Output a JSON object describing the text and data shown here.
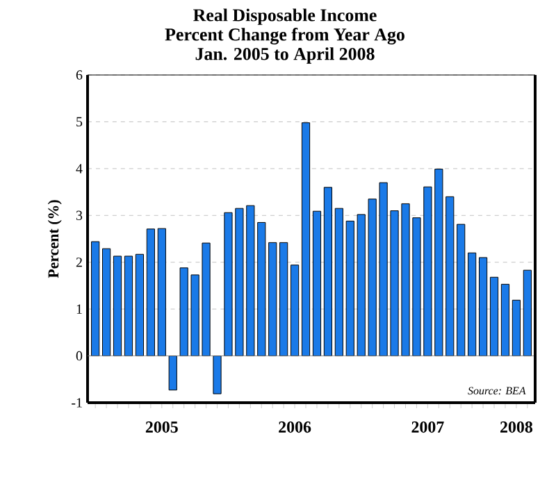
{
  "chart_data": {
    "type": "bar",
    "title": "Real Disposable Income\nPercent Change from Year Ago\nJan. 2005 to April 2008",
    "ylabel": "Percent (%)",
    "categories": [
      null,
      null,
      null,
      null,
      null,
      null,
      "2005",
      null,
      null,
      null,
      null,
      null,
      null,
      null,
      null,
      null,
      null,
      null,
      "2006",
      null,
      null,
      null,
      null,
      null,
      null,
      null,
      null,
      null,
      null,
      null,
      "2007",
      null,
      null,
      null,
      null,
      null,
      null,
      null,
      "2008",
      null
    ],
    "values": [
      2.44,
      2.29,
      2.13,
      2.13,
      2.17,
      2.71,
      2.72,
      -0.73,
      1.88,
      1.73,
      2.41,
      -0.81,
      3.06,
      3.15,
      3.21,
      2.85,
      2.42,
      2.42,
      1.94,
      4.98,
      3.09,
      3.6,
      3.15,
      2.88,
      3.02,
      3.35,
      3.7,
      3.1,
      3.25,
      2.95,
      3.61,
      3.99,
      3.4,
      2.81,
      2.2,
      2.1,
      1.68,
      1.53,
      1.19,
      1.83
    ],
    "color": "#1a7ae8",
    "ylim": [
      -1,
      6
    ],
    "yticks": [
      -1,
      0,
      1,
      2,
      3,
      4,
      5,
      6
    ],
    "grid": "y",
    "annotations": [
      "Source: BEA"
    ]
  }
}
